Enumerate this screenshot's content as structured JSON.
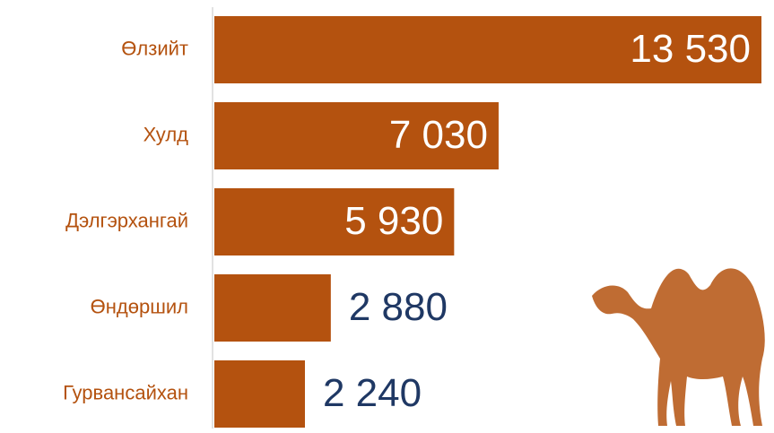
{
  "chart_data": {
    "type": "bar",
    "orientation": "horizontal",
    "categories": [
      "Өлзийт",
      "Хулд",
      "Дэлгэрхангай",
      "Өндөршил",
      "Гурвансайхан"
    ],
    "values": [
      13530,
      7030,
      5930,
      2880,
      2240
    ],
    "value_labels": [
      "13 530",
      "7 030",
      "5 930",
      "2 880",
      "2 240"
    ],
    "color": "#b4520f"
  }
}
